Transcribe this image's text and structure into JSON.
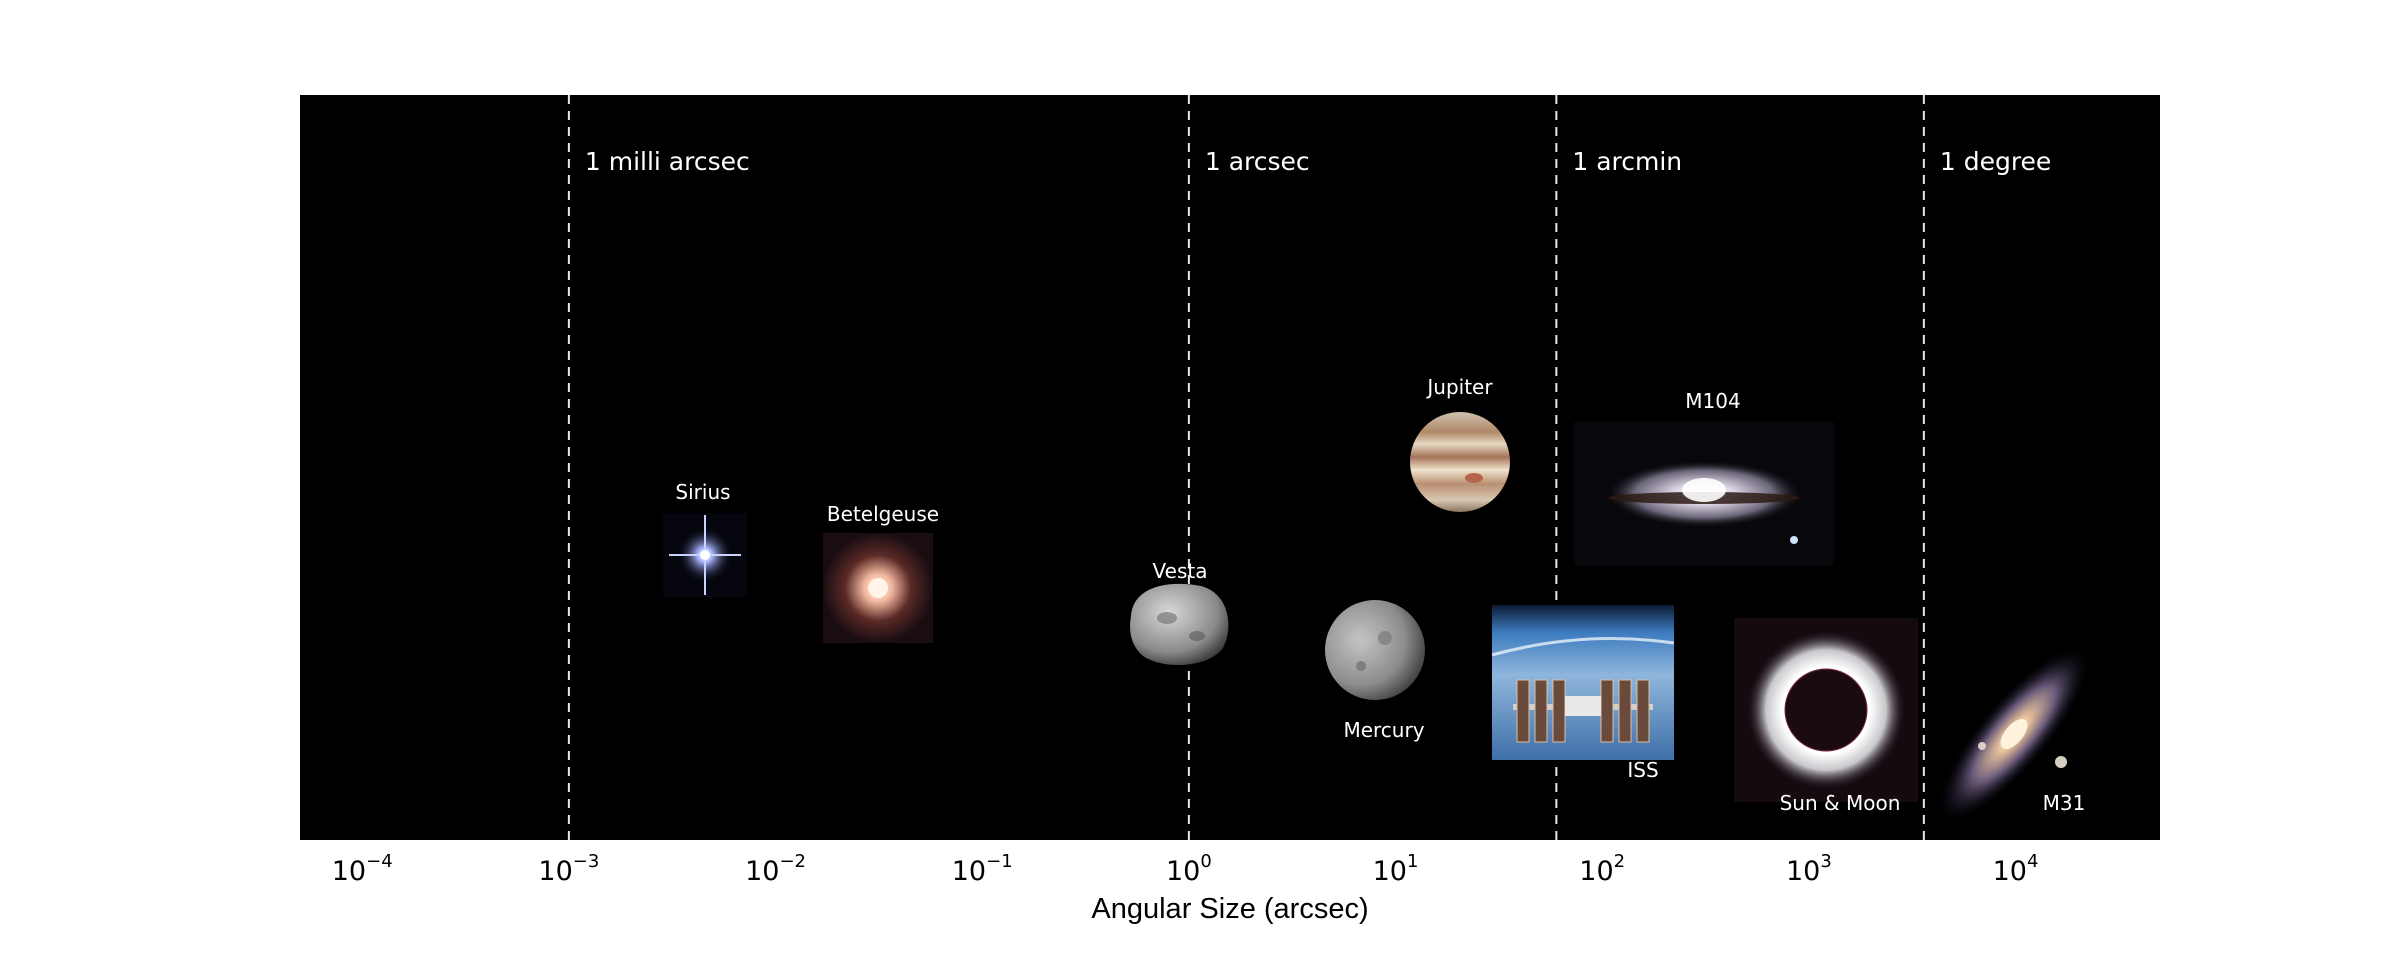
{
  "chart_data": {
    "type": "scatter",
    "title": "",
    "xlabel": "Angular Size (arcsec)",
    "ylabel": "",
    "xscale": "log",
    "xlim": [
      5e-05,
      50000
    ],
    "background": "#000000",
    "ticks": [
      {
        "base": "10",
        "exp": "−4",
        "value": 0.0001
      },
      {
        "base": "10",
        "exp": "−3",
        "value": 0.001
      },
      {
        "base": "10",
        "exp": "−2",
        "value": 0.01
      },
      {
        "base": "10",
        "exp": "−1",
        "value": 0.1
      },
      {
        "base": "10",
        "exp": "0",
        "value": 1
      },
      {
        "base": "10",
        "exp": "1",
        "value": 10
      },
      {
        "base": "10",
        "exp": "2",
        "value": 100
      },
      {
        "base": "10",
        "exp": "3",
        "value": 1000
      },
      {
        "base": "10",
        "exp": "4",
        "value": 10000
      }
    ],
    "reference_lines": [
      {
        "label": "1 milli arcsec",
        "value": 0.001
      },
      {
        "label": "1 arcsec",
        "value": 1
      },
      {
        "label": "1 arcmin",
        "value": 60
      },
      {
        "label": "1 degree",
        "value": 3600
      }
    ],
    "objects": [
      {
        "name": "Sirius",
        "size_arcsec": 0.006,
        "icon": "star-icon",
        "color": "#9fb4ff"
      },
      {
        "name": "Betelgeuse",
        "size_arcsec": 0.05,
        "icon": "red-giant-icon",
        "color": "#f0c8b0"
      },
      {
        "name": "Vesta",
        "size_arcsec": 0.7,
        "icon": "asteroid-icon",
        "color": "#a8a8a8"
      },
      {
        "name": "Mercury",
        "size_arcsec": 7,
        "icon": "planet-mercury-icon",
        "color": "#9a9a9a"
      },
      {
        "name": "Jupiter",
        "size_arcsec": 40,
        "icon": "planet-jupiter-icon",
        "color": "#d2b48c"
      },
      {
        "name": "ISS",
        "size_arcsec": 60,
        "icon": "space-station-icon",
        "color": "#4f7fb5"
      },
      {
        "name": "M104",
        "size_arcsec": 500,
        "icon": "galaxy-sombrero-icon",
        "color": "#cfcad6"
      },
      {
        "name": "Sun & Moon",
        "size_arcsec": 1900,
        "icon": "solar-eclipse-icon",
        "color": "#ffffff"
      },
      {
        "name": "M31",
        "size_arcsec": 10000,
        "icon": "galaxy-andromeda-icon",
        "color": "#e0b890"
      }
    ]
  }
}
